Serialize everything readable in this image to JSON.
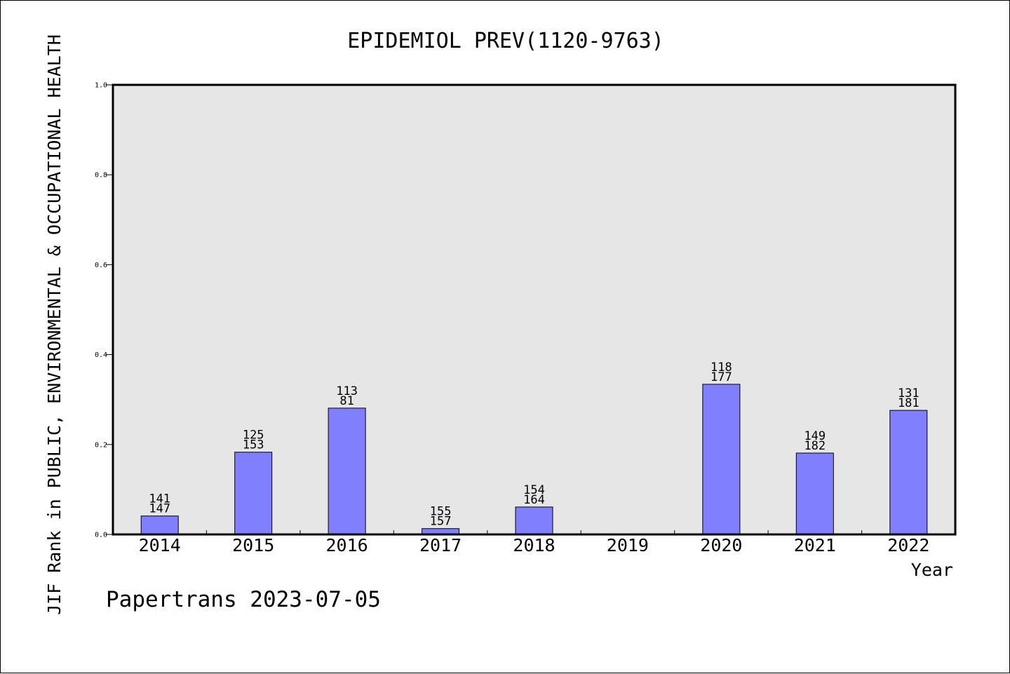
{
  "chart_data": {
    "type": "bar",
    "title": "EPIDEMIOL PREV(1120-9763)",
    "xlabel": "Year",
    "ylabel": "JIF Rank in PUBLIC, ENVIRONMENTAL & OCCUPATIONAL HEALTH",
    "ylim": [
      0,
      1.0
    ],
    "yticks": [
      "0.0",
      "0.2",
      "0.4",
      "0.6",
      "0.8",
      "1.0"
    ],
    "categories": [
      "2014",
      "2015",
      "2016",
      "2017",
      "2018",
      "2019",
      "2020",
      "2021",
      "2022"
    ],
    "values": [
      0.041,
      0.183,
      0.281,
      0.013,
      0.061,
      null,
      0.334,
      0.181,
      0.276
    ],
    "labels_top": [
      "141",
      "125",
      "113",
      "155",
      "154",
      "",
      "118",
      "149",
      "131"
    ],
    "labels_bottom": [
      "147",
      "153",
      "81",
      "157",
      "164",
      "",
      "177",
      "182",
      "181"
    ],
    "grid": false,
    "colors": {
      "bar_fill": "#8080ff",
      "plot_bg": "#e6e6e6",
      "axis": "#000000"
    }
  },
  "footer": {
    "credit": "Papertrans 2023-07-05"
  }
}
